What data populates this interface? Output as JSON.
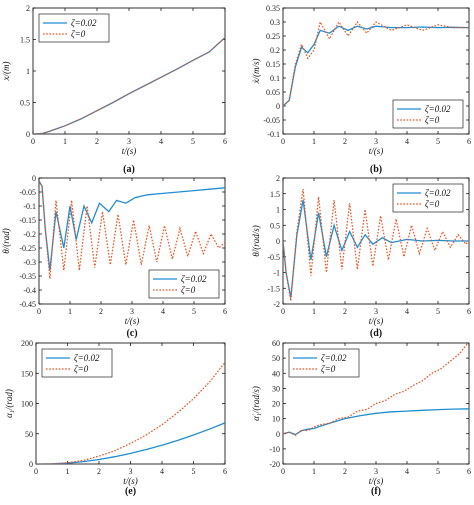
{
  "legend_labels": [
    "ζ=0.02",
    "ζ=0"
  ],
  "colors": {
    "zeta_002": "#1f8ed1",
    "zeta_0": "#e8501f"
  },
  "chart_data": [
    {
      "type": "line",
      "caption": "(a)",
      "xlabel": "t/(s)",
      "ylabel": "x/(m)",
      "xlim": [
        0,
        6
      ],
      "ylim": [
        0,
        2
      ],
      "xticks": [
        0,
        1,
        2,
        3,
        4,
        5,
        6
      ],
      "yticks": [
        0,
        0.5,
        1,
        1.5,
        2
      ],
      "xtick_labels": [
        "0",
        "1",
        "2",
        "3",
        "4",
        "5",
        "6"
      ],
      "ytick_labels": [
        "0",
        "0.5",
        "1",
        "1.5",
        "2"
      ],
      "legend_position": "top-left",
      "series": [
        {
          "name": "ζ=0.02",
          "style": "solid",
          "x": [
            0,
            0.3,
            0.5,
            1,
            1.5,
            2,
            2.5,
            3,
            3.5,
            4,
            4.5,
            5,
            5.5,
            6
          ],
          "y": [
            0,
            0.01,
            0.04,
            0.13,
            0.24,
            0.37,
            0.5,
            0.64,
            0.77,
            0.9,
            1.03,
            1.17,
            1.3,
            1.53
          ]
        },
        {
          "name": "ζ=0",
          "style": "dotted",
          "x": [
            0,
            0.3,
            0.5,
            1,
            1.5,
            2,
            2.5,
            3,
            3.5,
            4,
            4.5,
            5,
            5.5,
            6
          ],
          "y": [
            0,
            0.01,
            0.04,
            0.13,
            0.24,
            0.37,
            0.5,
            0.64,
            0.77,
            0.9,
            1.03,
            1.17,
            1.3,
            1.53
          ]
        }
      ]
    },
    {
      "type": "line",
      "caption": "(b)",
      "xlabel": "t/(s)",
      "ylabel": "ẋ/(m/s)",
      "xlim": [
        0,
        6
      ],
      "ylim": [
        -0.1,
        0.35
      ],
      "xticks": [
        0,
        1,
        2,
        3,
        4,
        5,
        6
      ],
      "yticks": [
        -0.1,
        -0.05,
        0,
        0.05,
        0.1,
        0.15,
        0.2,
        0.25,
        0.3,
        0.35
      ],
      "xtick_labels": [
        "0",
        "1",
        "2",
        "3",
        "4",
        "5",
        "6"
      ],
      "ytick_labels": [
        "-0.1",
        "-0.05",
        "0",
        "0.05",
        "0.1",
        "0.15",
        "0.2",
        "0.25",
        "0.3",
        "0.35"
      ],
      "legend_position": "bottom-right",
      "series": [
        {
          "name": "ζ=0.02",
          "style": "solid",
          "x": [
            0,
            0.2,
            0.4,
            0.6,
            0.8,
            1.0,
            1.2,
            1.5,
            1.8,
            2.1,
            2.4,
            2.7,
            3.0,
            3.5,
            4,
            4.5,
            5,
            5.5,
            6
          ],
          "y": [
            0,
            0.02,
            0.14,
            0.21,
            0.19,
            0.22,
            0.27,
            0.26,
            0.285,
            0.27,
            0.285,
            0.275,
            0.285,
            0.28,
            0.28,
            0.282,
            0.28,
            0.281,
            0.28
          ]
        },
        {
          "name": "ζ=0",
          "style": "dotted",
          "x": [
            0,
            0.2,
            0.4,
            0.6,
            0.8,
            1.0,
            1.2,
            1.5,
            1.8,
            2.1,
            2.4,
            2.7,
            3.0,
            3.5,
            4,
            4.5,
            5,
            5.5,
            6
          ],
          "y": [
            0,
            0.02,
            0.15,
            0.22,
            0.17,
            0.2,
            0.3,
            0.24,
            0.3,
            0.25,
            0.3,
            0.26,
            0.3,
            0.27,
            0.29,
            0.27,
            0.29,
            0.28,
            0.28
          ]
        }
      ]
    },
    {
      "type": "line",
      "caption": "(c)",
      "xlabel": "t/(s)",
      "ylabel": "θ/(rad)",
      "xlim": [
        0,
        6
      ],
      "ylim": [
        -0.45,
        0
      ],
      "xticks": [
        0,
        1,
        2,
        3,
        4,
        5,
        6
      ],
      "yticks": [
        -0.45,
        -0.4,
        -0.35,
        -0.3,
        -0.25,
        -0.2,
        -0.15,
        -0.1,
        -0.05,
        0
      ],
      "xtick_labels": [
        "0",
        "1",
        "2",
        "3",
        "4",
        "5",
        "6"
      ],
      "ytick_labels": [
        "-0.45",
        "-0.4",
        "-0.35",
        "-0.3",
        "-0.25",
        "-0.2",
        "-0.15",
        "-0.1",
        "-0.05",
        "0"
      ],
      "legend_position": "bottom-right",
      "series": [
        {
          "name": "ζ=0.02",
          "style": "solid",
          "x": [
            0,
            0.1,
            0.2,
            0.35,
            0.55,
            0.8,
            1.0,
            1.2,
            1.45,
            1.7,
            1.95,
            2.25,
            2.5,
            2.8,
            3.1,
            3.5,
            4,
            4.5,
            5,
            5.5,
            6
          ],
          "y": [
            -0.01,
            -0.03,
            -0.18,
            -0.33,
            -0.12,
            -0.25,
            -0.1,
            -0.22,
            -0.1,
            -0.16,
            -0.09,
            -0.12,
            -0.08,
            -0.09,
            -0.07,
            -0.06,
            -0.055,
            -0.05,
            -0.045,
            -0.04,
            -0.035
          ]
        },
        {
          "name": "ζ=0",
          "style": "dotted",
          "x": [
            0,
            0.1,
            0.2,
            0.35,
            0.55,
            0.8,
            1.05,
            1.3,
            1.55,
            1.8,
            2.05,
            2.3,
            2.55,
            2.8,
            3.05,
            3.3,
            3.55,
            3.8,
            4.05,
            4.3,
            4.55,
            4.8,
            5.05,
            5.3,
            5.55,
            5.8,
            6
          ],
          "y": [
            -0.01,
            -0.03,
            -0.18,
            -0.36,
            -0.08,
            -0.33,
            -0.08,
            -0.33,
            -0.1,
            -0.32,
            -0.12,
            -0.31,
            -0.13,
            -0.31,
            -0.15,
            -0.31,
            -0.17,
            -0.3,
            -0.17,
            -0.29,
            -0.18,
            -0.28,
            -0.19,
            -0.27,
            -0.2,
            -0.25,
            -0.23
          ]
        }
      ]
    },
    {
      "type": "line",
      "caption": "(d)",
      "xlabel": "t/(s)",
      "ylabel": "θ̇/(rad/s)",
      "xlim": [
        0,
        6
      ],
      "ylim": [
        -2,
        2
      ],
      "xticks": [
        0,
        1,
        2,
        3,
        4,
        5,
        6
      ],
      "yticks": [
        -2,
        -1.5,
        -1,
        -0.5,
        0,
        0.5,
        1,
        1.5,
        2
      ],
      "xtick_labels": [
        "0",
        "1",
        "2",
        "3",
        "4",
        "5",
        "6"
      ],
      "ytick_labels": [
        "-2",
        "-1.5",
        "-1",
        "-0.5",
        "0",
        "0.5",
        "1",
        "1.5",
        "2"
      ],
      "legend_position": "top-right",
      "series": [
        {
          "name": "ζ=0.02",
          "style": "solid",
          "x": [
            0,
            0.1,
            0.25,
            0.45,
            0.65,
            0.9,
            1.15,
            1.4,
            1.65,
            1.9,
            2.15,
            2.4,
            2.65,
            2.9,
            3.2,
            3.5,
            4,
            4.5,
            5,
            5.5,
            6
          ],
          "y": [
            0,
            -1.0,
            -1.8,
            0.2,
            1.3,
            -0.6,
            0.9,
            -0.5,
            0.5,
            -0.3,
            0.3,
            -0.2,
            0.2,
            -0.1,
            0.1,
            -0.05,
            0.05,
            0,
            0.02,
            0,
            0
          ]
        },
        {
          "name": "ζ=0",
          "style": "dotted",
          "x": [
            0,
            0.1,
            0.25,
            0.45,
            0.65,
            0.9,
            1.15,
            1.4,
            1.65,
            1.9,
            2.15,
            2.4,
            2.65,
            2.9,
            3.15,
            3.4,
            3.65,
            3.9,
            4.15,
            4.4,
            4.65,
            4.9,
            5.15,
            5.4,
            5.65,
            5.9,
            6
          ],
          "y": [
            0,
            -1.0,
            -1.9,
            0.3,
            1.65,
            -1.1,
            1.4,
            -1.0,
            1.3,
            -0.9,
            1.2,
            -0.9,
            1.0,
            -0.8,
            0.8,
            -0.6,
            0.7,
            -0.5,
            0.5,
            -0.4,
            0.4,
            -0.3,
            0.3,
            -0.2,
            0.2,
            -0.1,
            0
          ]
        }
      ]
    },
    {
      "type": "line",
      "caption": "(e)",
      "xlabel": "t/(s)",
      "ylabel": "α₁/(rad)",
      "xlim": [
        0,
        6
      ],
      "ylim": [
        0,
        200
      ],
      "xticks": [
        0,
        1,
        2,
        3,
        4,
        5,
        6
      ],
      "yticks": [
        0,
        50,
        100,
        150,
        200
      ],
      "xtick_labels": [
        "0",
        "1",
        "2",
        "3",
        "4",
        "5",
        "6"
      ],
      "ytick_labels": [
        "0",
        "50",
        "100",
        "150",
        "200"
      ],
      "legend_position": "top-left",
      "series": [
        {
          "name": "ζ=0.02",
          "style": "solid",
          "x": [
            0,
            0.5,
            1,
            1.5,
            2,
            2.5,
            3,
            3.5,
            4,
            4.5,
            5,
            5.5,
            6
          ],
          "y": [
            0,
            0.3,
            1.5,
            4,
            7.5,
            12,
            17.5,
            24,
            31,
            39,
            48,
            57.5,
            68
          ]
        },
        {
          "name": "ζ=0",
          "style": "dotted",
          "x": [
            0,
            0.5,
            1,
            1.5,
            2,
            2.5,
            3,
            3.5,
            4,
            4.5,
            5,
            5.5,
            6
          ],
          "y": [
            0,
            0.3,
            2,
            6,
            13,
            22,
            34,
            48,
            65,
            85,
            108,
            135,
            168
          ]
        }
      ]
    },
    {
      "type": "line",
      "caption": "(f)",
      "xlabel": "t/(s)",
      "ylabel": "α̇₁/(rad/s)",
      "xlim": [
        0,
        6
      ],
      "ylim": [
        -20,
        60
      ],
      "xticks": [
        0,
        1,
        2,
        3,
        4,
        5,
        6
      ],
      "yticks": [
        -20,
        -10,
        0,
        10,
        20,
        30,
        40,
        50,
        60
      ],
      "xtick_labels": [
        "0",
        "1",
        "2",
        "3",
        "4",
        "5",
        "6"
      ],
      "ytick_labels": [
        "-20",
        "-10",
        "0",
        "10",
        "20",
        "30",
        "40",
        "50",
        "60"
      ],
      "legend_position": "top-left",
      "series": [
        {
          "name": "ζ=0.02",
          "style": "solid",
          "x": [
            0,
            0.2,
            0.4,
            0.6,
            0.8,
            1.0,
            1.2,
            1.5,
            2,
            2.5,
            3,
            3.5,
            4,
            4.5,
            5,
            5.5,
            6
          ],
          "y": [
            0,
            1,
            -0.5,
            2,
            3,
            3.5,
            5,
            7,
            10,
            12,
            13.5,
            14.5,
            15,
            15.5,
            16,
            16.3,
            16.5
          ]
        },
        {
          "name": "ζ=0",
          "style": "dotted",
          "x": [
            0,
            0.2,
            0.4,
            0.6,
            0.8,
            1.0,
            1.2,
            1.5,
            1.8,
            2.1,
            2.4,
            2.7,
            3.0,
            3.3,
            3.6,
            3.9,
            4.2,
            4.5,
            4.8,
            5.1,
            5.4,
            5.7,
            6
          ],
          "y": [
            0,
            1,
            -1,
            2.5,
            2,
            4.5,
            6,
            7,
            10,
            11,
            15,
            16,
            20,
            22,
            26,
            28,
            32,
            35,
            40,
            43,
            48,
            53,
            61
          ]
        }
      ]
    }
  ]
}
